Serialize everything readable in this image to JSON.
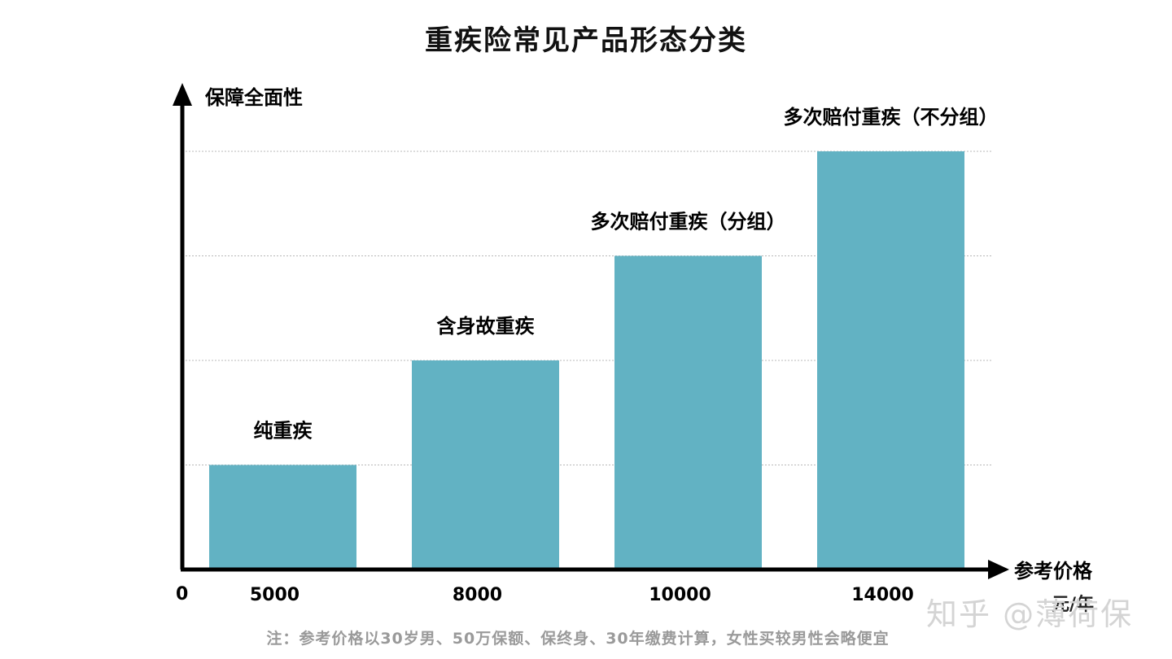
{
  "chart_data": {
    "type": "bar",
    "title": "重疾险常见产品形态分类",
    "ylabel": "保障全面性",
    "xlabel": "参考价格",
    "x_unit": "元/年",
    "origin_label": "0",
    "categories": [
      "5000",
      "8000",
      "10000",
      "14000"
    ],
    "bar_labels": [
      "纯重疾",
      "含身故重疾",
      "多次赔付重疾（分组）",
      "多次赔付重疾（不分组）"
    ],
    "values": [
      1,
      2,
      3,
      4
    ],
    "ylim": [
      0,
      4.4
    ],
    "grid": true,
    "bar_color": "#62b2c3",
    "note": "注：参考价格以30岁男、50万保额、保终身、30年缴费计算，女性买较男性会略便宜"
  },
  "watermark": "知乎 @薄荷保"
}
